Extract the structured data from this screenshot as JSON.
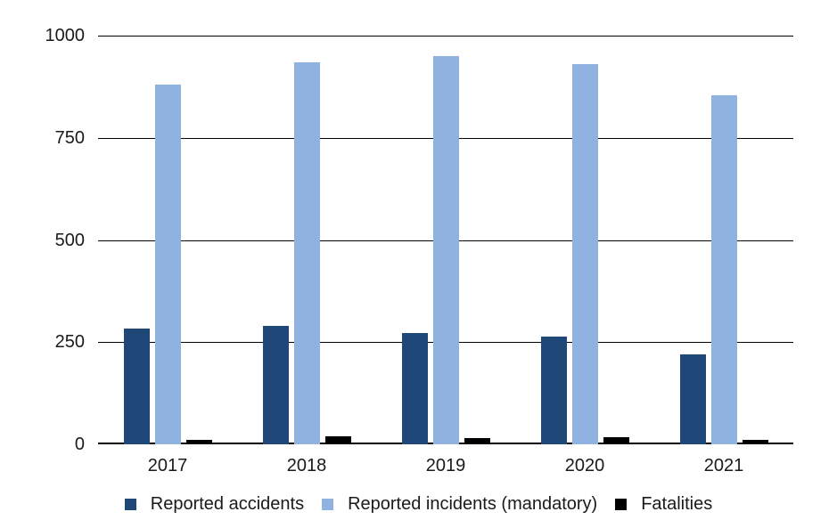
{
  "chart_data": {
    "type": "bar",
    "categories": [
      "2017",
      "2018",
      "2019",
      "2020",
      "2021"
    ],
    "series": [
      {
        "name": "Reported accidents",
        "color": "#1f4777",
        "values": [
          283,
          290,
          272,
          263,
          220
        ]
      },
      {
        "name": "Reported incidents (mandatory)",
        "color": "#8fb2e0",
        "values": [
          880,
          935,
          950,
          930,
          855
        ]
      },
      {
        "name": "Fatalities",
        "color": "#000000",
        "values": [
          10,
          20,
          15,
          17,
          10
        ]
      }
    ],
    "title": "",
    "xlabel": "",
    "ylabel": "",
    "ylim": [
      0,
      1000
    ],
    "yticks": [
      0,
      250,
      500,
      750,
      1000
    ],
    "grid": true,
    "legend_position": "bottom",
    "background_color": "#ffffff",
    "gridline_color": "#000000",
    "text_color": "#1a1a1a"
  }
}
